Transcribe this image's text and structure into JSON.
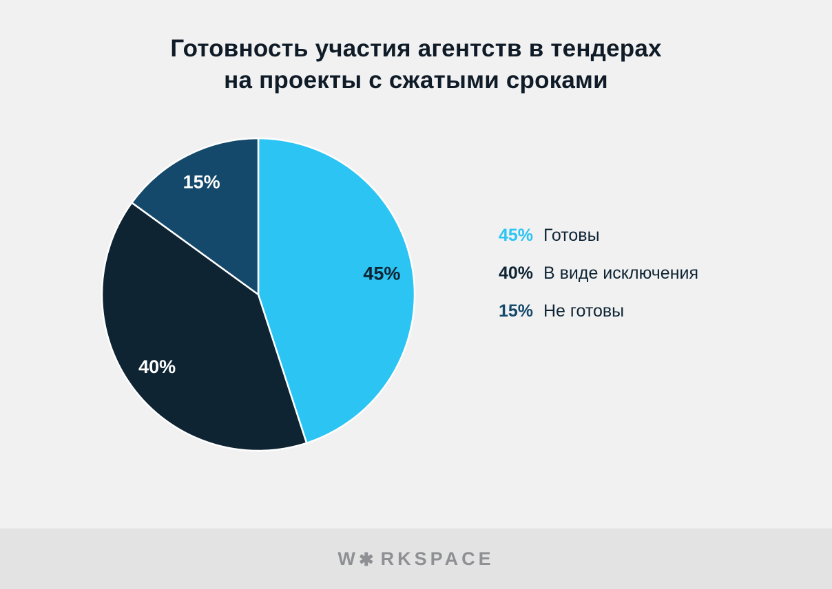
{
  "title": {
    "line1": "Готовность участия агентств в тендерах",
    "line2": "на проекты с сжатыми сроками"
  },
  "chart_data": {
    "type": "pie",
    "title": "Готовность участия агентств в тендерах на проекты с сжатыми сроками",
    "start_angle_deg": -90,
    "direction": "clockwise",
    "legend_position": "right",
    "slices": [
      {
        "label": "Готовы",
        "value": 45,
        "display": "45%",
        "color": "#2bc4f3",
        "label_color": "#0e2433"
      },
      {
        "label": "В виде исключения",
        "value": 40,
        "display": "40%",
        "color": "#0e2433",
        "label_color": "#ffffff"
      },
      {
        "label": "Не готовы",
        "value": 15,
        "display": "15%",
        "color": "#15496b",
        "label_color": "#ffffff"
      }
    ]
  },
  "footer": {
    "logo_prefix": "W",
    "logo_star": "✱",
    "logo_suffix": "RKSPACE"
  },
  "colors": {
    "background": "#f1f1f2",
    "footer_background": "#e3e3e4",
    "title_text": "#0f1b26",
    "legend_text": "#0e2433",
    "logo_gray": "#8f9093",
    "slice_divider": "#ffffff"
  }
}
